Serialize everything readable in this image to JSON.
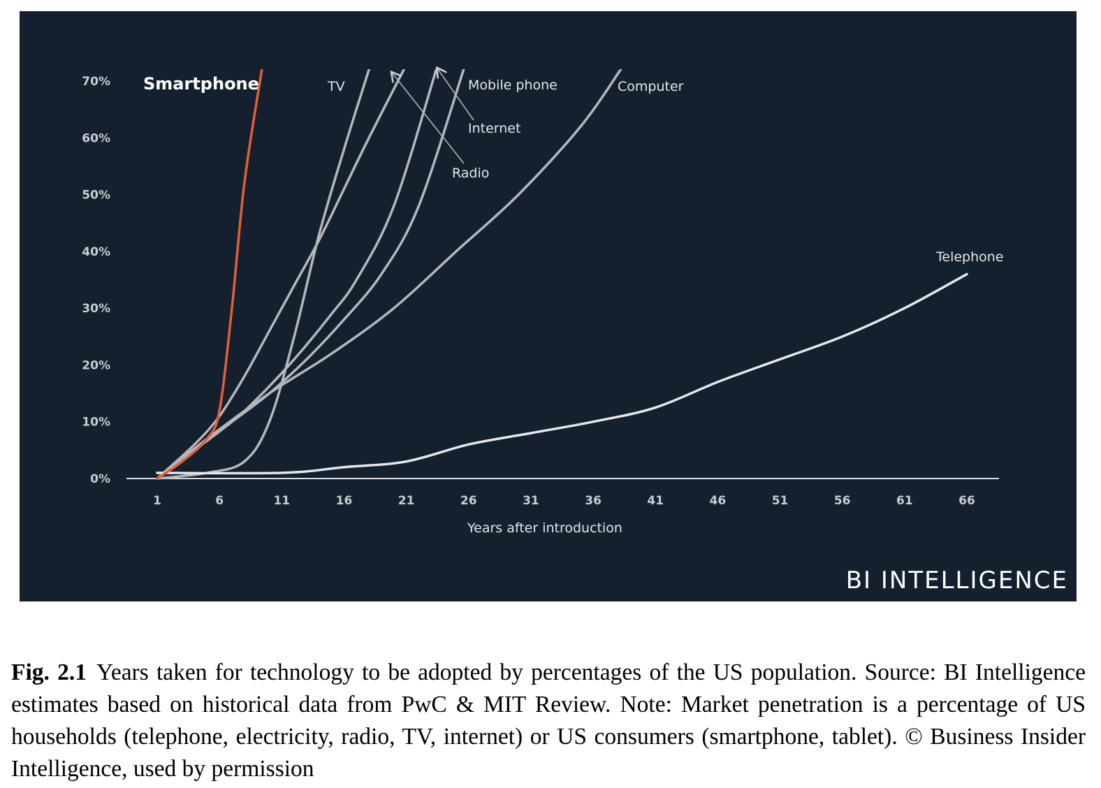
{
  "chart_data": {
    "type": "line",
    "title": "",
    "xlabel": "Years after introduction",
    "ylabel": "",
    "xlim": [
      1,
      66
    ],
    "ylim": [
      0,
      70
    ],
    "x_ticks": [
      1,
      6,
      11,
      16,
      21,
      26,
      31,
      36,
      41,
      46,
      51,
      56,
      61,
      66
    ],
    "y_ticks": [
      0,
      10,
      20,
      30,
      40,
      50,
      60,
      70
    ],
    "y_tick_labels": [
      "0%",
      "10%",
      "20%",
      "30%",
      "40%",
      "50%",
      "60%",
      "70%"
    ],
    "highlight_color": "#e0603a",
    "line_color": "#b4b7bc",
    "series": [
      {
        "name": "Smartphone",
        "highlight": true,
        "x": [
          1,
          3,
          5,
          6,
          7,
          8,
          9.4
        ],
        "y": [
          0,
          3,
          7,
          12,
          30,
          52,
          72
        ]
      },
      {
        "name": "TV",
        "highlight": false,
        "x": [
          1,
          5,
          8,
          10,
          12,
          14,
          16,
          18
        ],
        "y": [
          0,
          1,
          3,
          10,
          25,
          43,
          58,
          72
        ]
      },
      {
        "name": "Radio",
        "highlight": false,
        "x": [
          1,
          4,
          6,
          8,
          10,
          12,
          14,
          16,
          18,
          20.8
        ],
        "y": [
          0,
          6,
          11,
          18,
          26,
          34,
          42,
          51,
          60,
          72
        ]
      },
      {
        "name": "Internet",
        "highlight": false,
        "x": [
          1,
          4,
          7,
          9,
          12,
          15,
          17,
          20,
          23.4
        ],
        "y": [
          0,
          5,
          10,
          14,
          21,
          29,
          35,
          48,
          72
        ]
      },
      {
        "name": "Mobile phone",
        "highlight": false,
        "x": [
          1,
          4,
          7,
          10,
          13,
          16,
          19,
          22,
          25.6
        ],
        "y": [
          0,
          5,
          10,
          15,
          21,
          28,
          36,
          48,
          72
        ]
      },
      {
        "name": "Computer",
        "highlight": false,
        "x": [
          1,
          5,
          10,
          15,
          20,
          25,
          30,
          35,
          38.2
        ],
        "y": [
          0,
          7,
          15,
          22,
          30,
          40,
          50,
          62,
          72
        ]
      },
      {
        "name": "Telephone",
        "highlight": false,
        "x": [
          1,
          11,
          16,
          21,
          26,
          31,
          36,
          41,
          46,
          51,
          56,
          61,
          66
        ],
        "y": [
          1,
          1,
          2,
          3,
          6,
          8,
          10,
          12.5,
          17,
          21,
          25,
          30,
          36
        ]
      }
    ],
    "annotations": [
      {
        "text": "Smartphone",
        "points_to": "Smartphone"
      },
      {
        "text": "TV",
        "points_to": "TV"
      },
      {
        "text": "Mobile phone",
        "points_to": "Mobile phone"
      },
      {
        "text": "Internet",
        "points_to": "Internet"
      },
      {
        "text": "Radio",
        "points_to": "Radio"
      },
      {
        "text": "Computer",
        "points_to": "Computer"
      },
      {
        "text": "Telephone",
        "points_to": "Telephone"
      }
    ]
  },
  "brand": "BI INTELLIGENCE",
  "caption": {
    "label": "Fig. 2.1",
    "text": "Years taken for technology to be adopted by percentages of the US population. Source: BI Intelligence estimates based on historical data from PwC & MIT Review. Note: Market penetration is a percentage of US households (telephone, electricity, radio, TV, internet) or US consumers (smartphone, tablet). © Business Insider Intelligence, used by permission"
  }
}
